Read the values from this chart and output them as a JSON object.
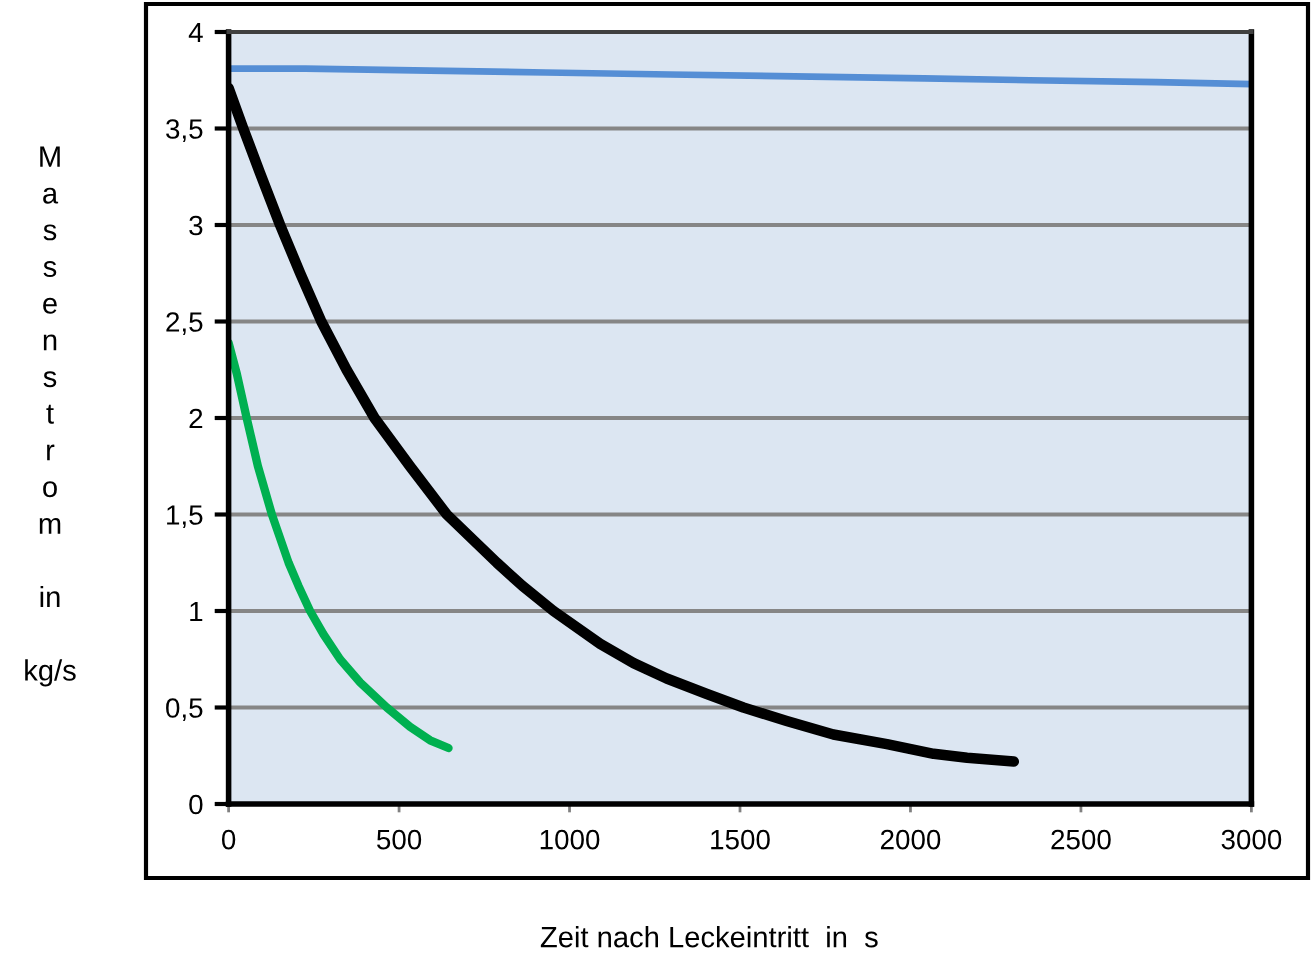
{
  "chart_data": {
    "type": "line",
    "xlabel": "Zeit nach Leckeintritt  in  s",
    "ylabel": "M\na\ns\ns\ne\nn\ns\nt\nr\no\nm\n\nin\n\nkg/s",
    "series": [
      {
        "color": "#558ed5",
        "x": [
          0,
          225,
          590,
          930,
          1295,
          1660,
          2040,
          2350,
          2720,
          3000
        ],
        "values": [
          3.81,
          3.81,
          3.8,
          3.79,
          3.78,
          3.77,
          3.76,
          3.75,
          3.74,
          3.73
        ]
      },
      {
        "color": "#000000",
        "x": [
          0,
          43,
          92,
          151,
          210,
          272,
          346,
          428,
          532,
          640,
          787,
          862,
          953,
          1090,
          1188,
          1285,
          1403,
          1510,
          1637,
          1774,
          1931,
          2068,
          2166,
          2303
        ],
        "values": [
          3.71,
          3.5,
          3.27,
          3.0,
          2.75,
          2.5,
          2.25,
          2.0,
          1.75,
          1.5,
          1.25,
          1.13,
          1.0,
          0.83,
          0.73,
          0.65,
          0.57,
          0.5,
          0.43,
          0.36,
          0.31,
          0.26,
          0.24,
          0.22
        ]
      },
      {
        "color": "#00b050",
        "x": [
          0,
          24,
          53,
          86,
          127,
          176,
          205,
          239,
          278,
          327,
          386,
          464,
          532,
          591,
          645
        ],
        "values": [
          2.39,
          2.23,
          2.0,
          1.75,
          1.5,
          1.25,
          1.13,
          1.0,
          0.88,
          0.75,
          0.63,
          0.5,
          0.4,
          0.33,
          0.29
        ]
      }
    ],
    "xlim": [
      0,
      3000
    ],
    "xticks": [
      0,
      500,
      1000,
      1500,
      2000,
      2500,
      3000
    ],
    "ylim": [
      0,
      4
    ],
    "yticks": [
      0,
      {
        "value": 0.5,
        "label": "0,5"
      },
      1,
      {
        "value": 1.5,
        "label": "1,5"
      },
      2,
      {
        "value": 2.5,
        "label": "2,5"
      },
      3,
      {
        "value": 3.5,
        "label": "3,5"
      },
      4
    ],
    "grid": "y"
  }
}
